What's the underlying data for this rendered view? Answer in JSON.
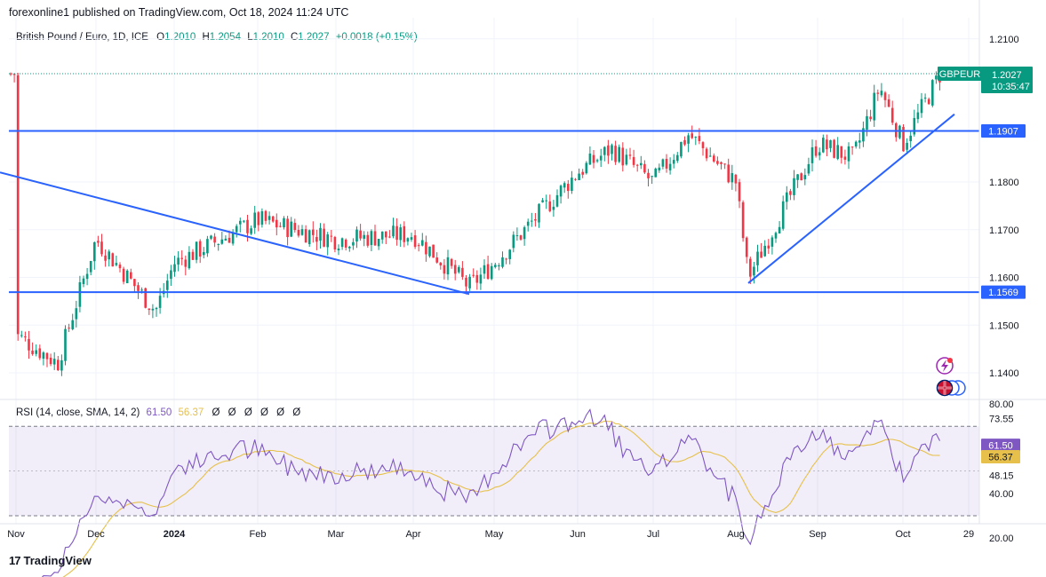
{
  "publisher": "forexonline1 published on TradingView.com, Oct 18, 2024 11:24 UTC",
  "legend": {
    "title": "British Pound / Euro, 1D, ICE",
    "o_label": "O",
    "o": "1.2010",
    "h_label": "H",
    "h": "1.2054",
    "l_label": "L",
    "l": "1.2010",
    "c_label": "C",
    "c": "1.2027",
    "change": "+0.0018 (+0.15%)"
  },
  "price_badge": {
    "symbol": "GBPEUR",
    "price": "1.2027",
    "countdown": "10:35:47"
  },
  "rsi_legend": {
    "title": "RSI (14, close, SMA, 14, 2)",
    "rsi": "61.50",
    "sma": "56.37",
    "nulls": [
      "Ø",
      "Ø",
      "Ø",
      "Ø",
      "Ø",
      "Ø"
    ]
  },
  "footer": {
    "brand": "TradingView",
    "icon": "tradingview-logo-icon"
  },
  "colors": {
    "up": "#089981",
    "down": "#f23645",
    "line": "#2962ff",
    "rsi": "#7e57c2",
    "sma": "#e6c04a",
    "badge": "#2962ff",
    "last": "#089981"
  },
  "chart_data": [
    {
      "type": "candlestick",
      "title": "British Pound / Euro, 1D, ICE",
      "ylim": [
        1.135,
        1.212
      ],
      "y_ticks": [
        "1.2100",
        "1.1800",
        "1.1700",
        "1.1600",
        "1.1500",
        "1.1400"
      ],
      "x_ticks": [
        "Nov",
        "Dec",
        "2024",
        "Feb",
        "Mar",
        "Apr",
        "May",
        "Jun",
        "Jul",
        "Aug",
        "Sep",
        "Oct",
        "29"
      ],
      "anchors": [
        {
          "x": "Nov",
          "y": 1.148
        },
        {
          "x": "mid-Nov",
          "y": 1.142
        },
        {
          "x": "Dec",
          "y": 1.168
        },
        {
          "x": "late-Dec",
          "y": 1.153
        },
        {
          "x": "2024",
          "y": 1.163
        },
        {
          "x": "Feb",
          "y": 1.172
        },
        {
          "x": "Mar",
          "y": 1.168
        },
        {
          "x": "Apr",
          "y": 1.169
        },
        {
          "x": "late-Apr",
          "y": 1.158
        },
        {
          "x": "May",
          "y": 1.163
        },
        {
          "x": "Jun",
          "y": 1.182
        },
        {
          "x": "mid-Jun",
          "y": 1.187
        },
        {
          "x": "Jul",
          "y": 1.18
        },
        {
          "x": "mid-Jul",
          "y": 1.19
        },
        {
          "x": "Aug",
          "y": 1.18
        },
        {
          "x": "early-Aug",
          "y": 1.16
        },
        {
          "x": "mid-Aug",
          "y": 1.172
        },
        {
          "x": "Sep",
          "y": 1.188
        },
        {
          "x": "mid-Sep",
          "y": 1.185
        },
        {
          "x": "late-Sep",
          "y": 1.2
        },
        {
          "x": "Oct",
          "y": 1.188
        },
        {
          "x": "Oct 18",
          "y": 1.2027
        }
      ],
      "horizontal_lines": [
        {
          "label": "1.1907",
          "value": 1.1907
        },
        {
          "label": "1.1569",
          "value": 1.1569
        }
      ],
      "trendlines": [
        {
          "from": {
            "x": "late-Apr",
            "y": 1.1565
          },
          "to": {
            "x": "late-Jul",
            "y": 1.182
          }
        },
        {
          "from": {
            "x": "early-Aug",
            "y": 1.1588
          },
          "to": {
            "x": "Oct 18",
            "y": 1.1942
          }
        }
      ],
      "last_price": 1.2027
    },
    {
      "type": "line",
      "title": "RSI (14, close, SMA, 14, 2)",
      "ylim": [
        15,
        85
      ],
      "y_ticks": [
        "80.00",
        "73.55",
        "48.15",
        "40.00",
        "20.00"
      ],
      "bands": [
        70,
        30
      ],
      "series": [
        {
          "name": "RSI",
          "last": 61.5
        },
        {
          "name": "SMA",
          "last": 56.37
        }
      ]
    }
  ]
}
